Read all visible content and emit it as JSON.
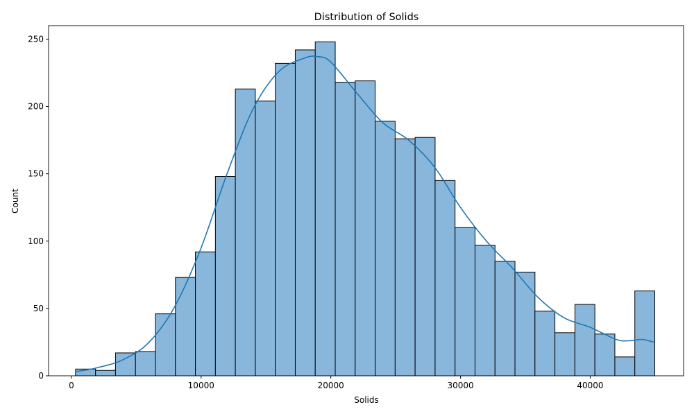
{
  "chart_data": {
    "type": "bar",
    "title": "Distribution of Solids",
    "xlabel": "Solids",
    "ylabel": "Count",
    "xlim": [
      -1760,
      47200
    ],
    "ylim": [
      0,
      260
    ],
    "xticks": [
      0,
      10000,
      20000,
      30000,
      40000
    ],
    "xtick_labels": [
      "0",
      "10000",
      "20000",
      "30000",
      "40000"
    ],
    "yticks": [
      0,
      50,
      100,
      150,
      200,
      250
    ],
    "ytick_labels": [
      "0",
      "50",
      "100",
      "150",
      "200",
      "250"
    ],
    "grid": false,
    "bin_start": 320,
    "bin_width": 1540,
    "values": [
      5,
      4,
      17,
      18,
      46,
      73,
      92,
      148,
      213,
      204,
      232,
      242,
      248,
      218,
      219,
      189,
      176,
      177,
      145,
      110,
      97,
      85,
      77,
      48,
      32,
      53,
      31,
      14,
      63
    ],
    "kde_x": [
      320,
      2000,
      4000,
      6000,
      8000,
      10000,
      12000,
      14000,
      16000,
      18000,
      19000,
      20000,
      22000,
      24000,
      26000,
      28000,
      30000,
      32000,
      34000,
      36000,
      38000,
      40000,
      42000,
      43000,
      44000,
      44900
    ],
    "kde_y": [
      3,
      6,
      12,
      25,
      52,
      95,
      150,
      198,
      226,
      236,
      237,
      233,
      210,
      188,
      175,
      155,
      125,
      100,
      80,
      58,
      43,
      36,
      27,
      26,
      27,
      25
    ],
    "colors": {
      "bar_fill": "#89b7db",
      "bar_edge": "#000000",
      "kde_line": "#1f77b4",
      "axes": "#000000"
    }
  }
}
